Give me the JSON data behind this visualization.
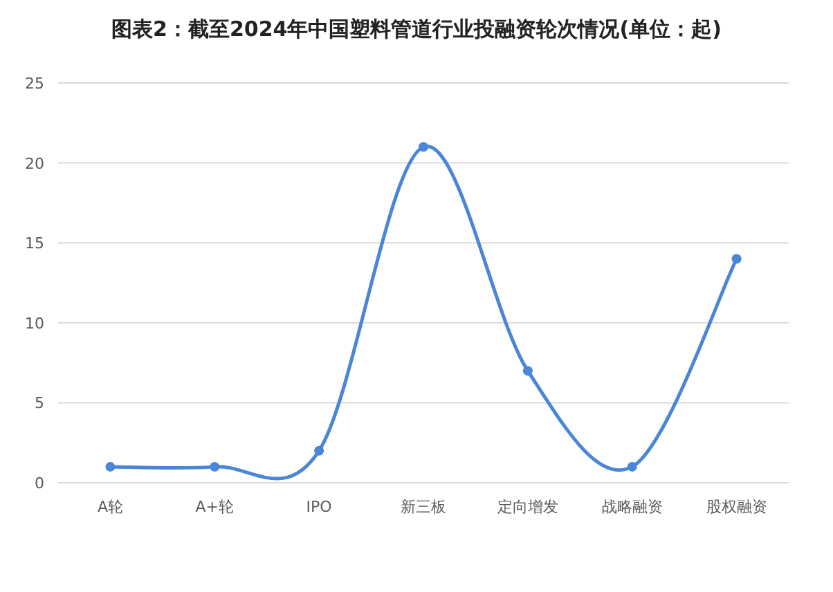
{
  "chart_data": {
    "type": "line",
    "title": "图表2：截至2024年中国塑料管道行业投融资轮次情况(单位：起)",
    "categories": [
      "A轮",
      "A+轮",
      "IPO",
      "新三板",
      "定向增发",
      "战略融资",
      "股权融资"
    ],
    "series": [
      {
        "color": "#4a86d8",
        "values": [
          1,
          1,
          2,
          21,
          7,
          1,
          14
        ]
      }
    ],
    "ylim": [
      0,
      25
    ],
    "yticks": [
      0,
      5,
      10,
      15,
      20,
      25
    ],
    "grid": "y",
    "marker": "circle",
    "line_style": "solid"
  }
}
